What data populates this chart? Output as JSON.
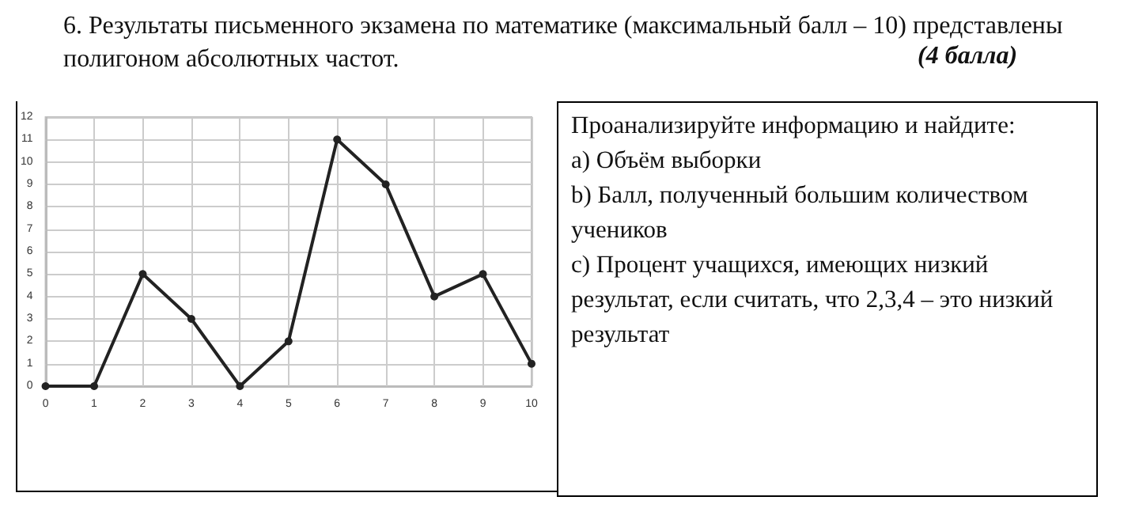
{
  "chart_data": {
    "type": "line",
    "title": "6. Результаты письменного экзамена по математике (максимальный балл – 10) представлены полигоном абсолютных частот.",
    "annotations": [
      "(4 балла)",
      "Проанализируйте информацию и найдите:\na) Объём выборки\nb) Балл, полученный большим количеством учеников\nc) Процент учащихся, имеющих низкий результат, если считать, что 2,3,4 – это низкий результат"
    ],
    "x": [
      0,
      1,
      2,
      3,
      4,
      5,
      6,
      7,
      8,
      9,
      10
    ],
    "series": [
      {
        "color": "#222222",
        "values": [
          0,
          0,
          5,
          3,
          0,
          2,
          11,
          9,
          4,
          5,
          1
        ]
      }
    ],
    "xlim": [
      0,
      10
    ],
    "xticks": [
      0,
      1,
      2,
      3,
      4,
      5,
      6,
      7,
      8,
      9,
      10
    ],
    "ylim": [
      0,
      12
    ],
    "yticks": [
      0,
      1,
      2,
      3,
      4,
      5,
      6,
      7,
      8,
      9,
      10,
      11,
      12
    ],
    "grid": true,
    "marker": "circle",
    "line_style": "solid"
  }
}
